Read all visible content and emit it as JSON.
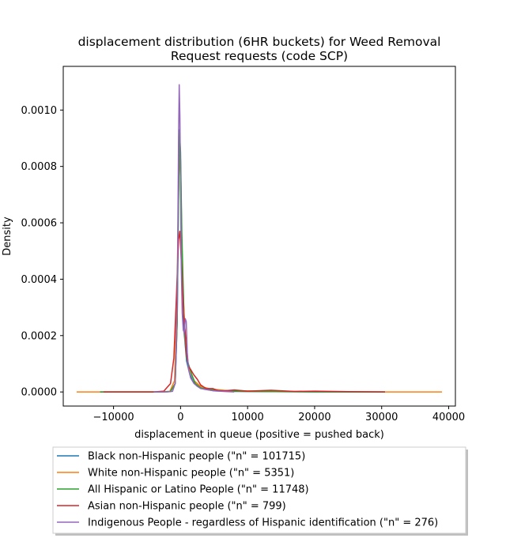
{
  "chart_data": {
    "type": "line",
    "title_line1": "displacement distribution (6HR buckets) for Weed Removal",
    "title_line2": "Request requests (code SCP)",
    "xlabel": "displacement in queue (positive = pushed back)",
    "ylabel": "Density",
    "xlim": [
      -17500,
      41000
    ],
    "ylim": [
      -5e-05,
      0.001155
    ],
    "x_ticks": [
      -10000,
      0,
      10000,
      20000,
      30000,
      40000
    ],
    "x_tick_labels": [
      "−10000",
      "0",
      "10000",
      "20000",
      "30000",
      "40000"
    ],
    "y_ticks": [
      0.0,
      0.0002,
      0.0004,
      0.0006,
      0.0008,
      0.001
    ],
    "y_tick_labels": [
      "0.0000",
      "0.0002",
      "0.0004",
      "0.0006",
      "0.0008",
      "0.0010"
    ],
    "grid": false,
    "legend_position": "below plot",
    "series": [
      {
        "name": "Black non-Hispanic people (\"n\" = 101715)",
        "color": "#1f77b4",
        "x": [
          -12000,
          -3000,
          -1500,
          -800,
          -500,
          -300,
          -150,
          0,
          200,
          500,
          900,
          1300,
          1800,
          2500,
          3500,
          5000,
          8000,
          15000,
          25000,
          30500
        ],
        "y": [
          0,
          0,
          2e-06,
          3e-05,
          0.00025,
          0.0007,
          0.00093,
          0.00082,
          0.0005,
          0.00022,
          0.00011,
          7e-05,
          4e-05,
          2e-05,
          1e-05,
          4e-06,
          2e-06,
          1e-06,
          0,
          0
        ]
      },
      {
        "name": "White non-Hispanic people (\"n\" = 5351)",
        "color": "#ff7f0e",
        "x": [
          -15500,
          -4000,
          -1600,
          -900,
          -550,
          -300,
          -120,
          50,
          300,
          700,
          1200,
          2000,
          3000,
          4500,
          7000,
          12000,
          20000,
          30000,
          39000
        ],
        "y": [
          0,
          0,
          2e-06,
          4e-05,
          0.0003,
          0.00072,
          0.00088,
          0.0007,
          0.0004,
          0.00018,
          9e-05,
          4e-05,
          2e-05,
          1e-05,
          5e-06,
          3e-06,
          1e-06,
          0,
          0
        ]
      },
      {
        "name": "All Hispanic or Latino People (\"n\" = 11748)",
        "color": "#2ca02c",
        "x": [
          -12000,
          -3000,
          -1500,
          -800,
          -500,
          -300,
          -150,
          0,
          200,
          500,
          900,
          1300,
          1700,
          2200,
          3000,
          4000,
          6000,
          10000,
          20000,
          30500
        ],
        "y": [
          0,
          0,
          2e-06,
          3e-05,
          0.00025,
          0.00068,
          0.00092,
          0.00085,
          0.00055,
          0.00028,
          0.00012,
          9e-05,
          6e-05,
          3e-05,
          1.5e-05,
          1e-05,
          4e-06,
          2e-06,
          0,
          0
        ]
      },
      {
        "name": "Asian non-Hispanic people (\"n\" = 799)",
        "color": "#d62728",
        "x": [
          -11500,
          -4000,
          -2500,
          -1500,
          -1000,
          -600,
          -300,
          -100,
          100,
          350,
          500,
          700,
          900,
          1200,
          1500,
          2000,
          2500,
          3000,
          3800,
          4800,
          5600,
          6500,
          8000,
          10000,
          13500,
          17000,
          20000,
          25000,
          30500
        ],
        "y": [
          0,
          0,
          3e-06,
          3e-05,
          0.00012,
          0.00035,
          0.00054,
          0.00057,
          0.00047,
          0.00034,
          0.00026,
          0.00021,
          0.00013,
          9e-05,
          8e-05,
          6e-05,
          4.5e-05,
          2.5e-05,
          1.2e-05,
          1.2e-05,
          5e-06,
          4e-06,
          7e-06,
          3e-06,
          6e-06,
          2e-06,
          3e-06,
          1e-06,
          0
        ]
      },
      {
        "name": "Indigenous People - regardless of Hispanic identification (\"n\" = 276)",
        "color": "#9467bd",
        "x": [
          -4000,
          -2000,
          -1200,
          -800,
          -500,
          -300,
          -200,
          -100,
          0,
          100,
          250,
          400,
          550,
          700,
          850,
          1000,
          1200,
          1500,
          2000,
          2500,
          3000,
          4000,
          5000,
          6500,
          8000
        ],
        "y": [
          0,
          0,
          2e-06,
          3e-05,
          0.0003,
          0.0009,
          0.00109,
          0.00098,
          0.00072,
          0.00045,
          0.00028,
          0.00022,
          0.00021,
          0.00026,
          0.00025,
          0.00014,
          8e-05,
          5e-05,
          3e-05,
          2e-05,
          1.2e-05,
          8e-06,
          4e-06,
          2e-06,
          0
        ]
      }
    ]
  }
}
